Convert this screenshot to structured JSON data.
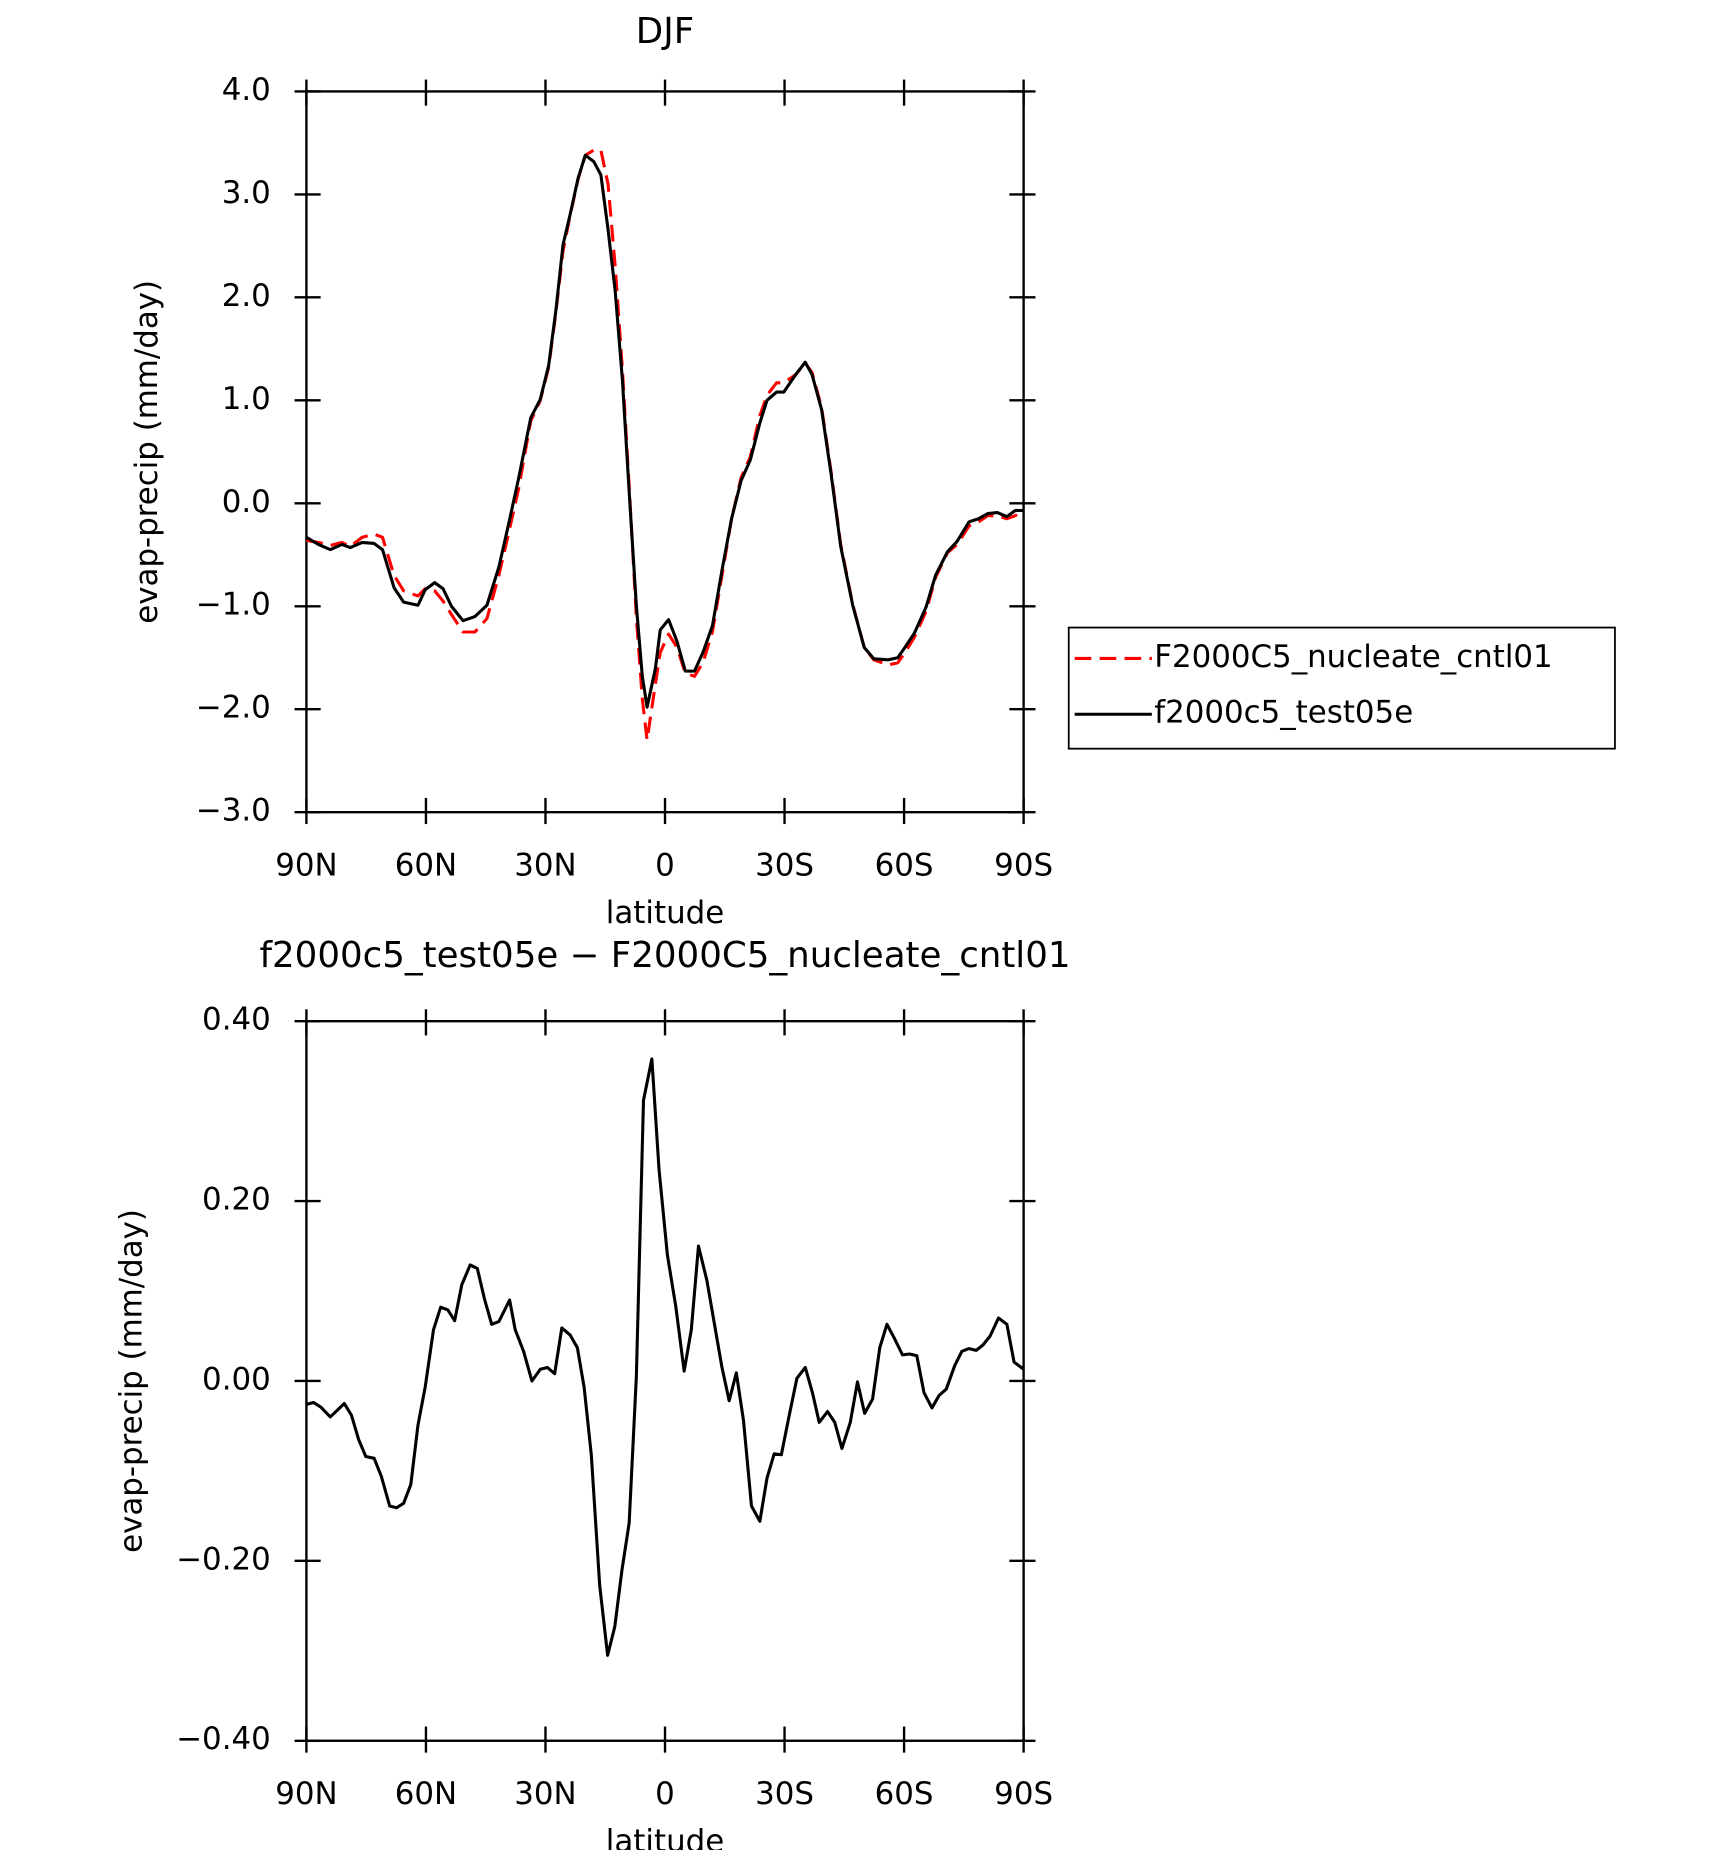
{
  "chart_data": [
    {
      "type": "line",
      "title": "DJF",
      "xlabel": "latitude",
      "ylabel": "evap-precip (mm/day)",
      "x": [
        90,
        87.0,
        84.0,
        81.1,
        79.0,
        76.0,
        73.0,
        70.9,
        68.0,
        65.6,
        62.0,
        60.2,
        57.8,
        55.7,
        53.6,
        50.7,
        47.7,
        44.7,
        41.7,
        39.3,
        36.7,
        33.7,
        31.3,
        29.2,
        27.4,
        25.6,
        23.9,
        21.8,
        20.0,
        17.9,
        16.1,
        14.3,
        12.5,
        10.7,
        8.9,
        7.2,
        5.7,
        4.5,
        2.4,
        1.2,
        -0.9,
        -3.0,
        -5.1,
        -7.4,
        -9.5,
        -11.9,
        -14.3,
        -16.7,
        -19.1,
        -21.4,
        -23.8,
        -25.6,
        -28.0,
        -29.8,
        -32.8,
        -35.2,
        -36.9,
        -39.3,
        -41.7,
        -44.1,
        -47.1,
        -50.0,
        -52.4,
        -56.0,
        -58.4,
        -60.2,
        -62.6,
        -65.5,
        -67.9,
        -70.9,
        -73.3,
        -76.3,
        -78.7,
        -81.0,
        -83.4,
        -85.8,
        -87.9,
        -90
      ],
      "series": [
        {
          "name": "F2000C5_nucleate_cntl01",
          "color": "#ff0000",
          "dash": "dashed",
          "values": [
            -0.36,
            -0.38,
            -0.41,
            -0.38,
            -0.42,
            -0.33,
            -0.3,
            -0.33,
            -0.7,
            -0.85,
            -0.9,
            -0.83,
            -0.85,
            -0.95,
            -1.08,
            -1.25,
            -1.25,
            -1.12,
            -0.7,
            -0.3,
            0.15,
            0.8,
            1.0,
            1.32,
            1.85,
            2.45,
            2.78,
            3.15,
            3.38,
            3.43,
            3.43,
            3.1,
            2.3,
            1.3,
            0.1,
            -1.1,
            -1.9,
            -2.3,
            -1.75,
            -1.45,
            -1.27,
            -1.4,
            -1.65,
            -1.68,
            -1.55,
            -1.25,
            -0.7,
            -0.15,
            0.25,
            0.45,
            0.85,
            1.05,
            1.17,
            1.17,
            1.25,
            1.36,
            1.27,
            0.93,
            0.3,
            -0.4,
            -0.98,
            -1.4,
            -1.52,
            -1.57,
            -1.55,
            -1.45,
            -1.3,
            -1.05,
            -0.72,
            -0.48,
            -0.4,
            -0.22,
            -0.18,
            -0.12,
            -0.12,
            -0.15,
            -0.12,
            -0.07
          ]
        },
        {
          "name": "f2000c5_test05e",
          "color": "#000000",
          "dash": "solid",
          "values": [
            -0.33,
            -0.4,
            -0.45,
            -0.4,
            -0.43,
            -0.38,
            -0.39,
            -0.45,
            -0.82,
            -0.96,
            -0.99,
            -0.84,
            -0.77,
            -0.83,
            -1.0,
            -1.14,
            -1.1,
            -0.99,
            -0.62,
            -0.21,
            0.25,
            0.83,
            1.01,
            1.34,
            1.87,
            2.51,
            2.79,
            3.16,
            3.38,
            3.32,
            3.19,
            2.66,
            2.06,
            1.2,
            0.05,
            -0.99,
            -1.68,
            -1.98,
            -1.6,
            -1.23,
            -1.13,
            -1.34,
            -1.63,
            -1.63,
            -1.45,
            -1.19,
            -0.65,
            -0.15,
            0.22,
            0.42,
            0.78,
            1.0,
            1.08,
            1.08,
            1.25,
            1.37,
            1.25,
            0.91,
            0.28,
            -0.42,
            -0.99,
            -1.4,
            -1.51,
            -1.52,
            -1.5,
            -1.4,
            -1.26,
            -1.01,
            -0.7,
            -0.47,
            -0.37,
            -0.18,
            -0.15,
            -0.1,
            -0.09,
            -0.13,
            -0.07,
            -0.07
          ]
        }
      ],
      "xlim": [
        90,
        -90
      ],
      "xticks": [
        {
          "value": 90,
          "label": "90N"
        },
        {
          "value": 60,
          "label": "60N"
        },
        {
          "value": 30,
          "label": "30N"
        },
        0,
        {
          "value": -30,
          "label": "30S"
        },
        {
          "value": -60,
          "label": "60S"
        },
        {
          "value": -90,
          "label": "90S"
        }
      ],
      "ylim": [
        -3,
        4
      ],
      "yticks": [
        {
          "value": 4,
          "label": "4.0"
        },
        {
          "value": 3,
          "label": "3.0"
        },
        {
          "value": 2,
          "label": "2.0"
        },
        {
          "value": 1,
          "label": "1.0"
        },
        {
          "value": 0,
          "label": "0.0"
        },
        {
          "value": -1,
          "label": "−1.0"
        },
        {
          "value": -2,
          "label": "−2.0"
        },
        {
          "value": -3,
          "label": "−3.0"
        }
      ],
      "legend": "right"
    },
    {
      "type": "line",
      "title": "f2000c5_test05e − F2000C5_nucleate_cntl01",
      "xlabel": "latitude",
      "ylabel": "evap-precip (mm/day)",
      "x": [
        90,
        88.2,
        86.4,
        84.0,
        80.5,
        78.7,
        76.9,
        75.1,
        73.0,
        71.2,
        69.1,
        67.4,
        65.6,
        63.8,
        62.0,
        60.2,
        58.1,
        56.3,
        54.5,
        52.8,
        51.0,
        48.9,
        47.1,
        45.3,
        43.5,
        41.7,
        39.0,
        37.6,
        35.5,
        33.4,
        31.3,
        29.5,
        27.7,
        25.9,
        23.8,
        22.0,
        20.3,
        18.5,
        16.4,
        14.4,
        12.6,
        10.8,
        9.0,
        7.2,
        5.4,
        3.3,
        1.5,
        -0.6,
        -2.7,
        -4.8,
        -6.6,
        -8.4,
        -10.5,
        -12.3,
        -14.3,
        -16.1,
        -17.9,
        -19.7,
        -21.7,
        -23.8,
        -25.6,
        -27.4,
        -29.2,
        -31.0,
        -33.1,
        -35.2,
        -37.0,
        -38.7,
        -40.8,
        -42.6,
        -44.4,
        -46.5,
        -48.3,
        -50.1,
        -52.1,
        -53.9,
        -55.7,
        -57.5,
        -59.6,
        -61.4,
        -63.2,
        -65.0,
        -67.0,
        -68.8,
        -70.6,
        -72.7,
        -74.5,
        -76.3,
        -78.1,
        -79.8,
        -81.6,
        -83.7,
        -85.8,
        -87.6,
        -90
      ],
      "values": [
        -0.026,
        -0.024,
        -0.029,
        -0.04,
        -0.025,
        -0.038,
        -0.065,
        -0.084,
        -0.086,
        -0.106,
        -0.139,
        -0.141,
        -0.136,
        -0.115,
        -0.049,
        -0.007,
        0.057,
        0.082,
        0.079,
        0.067,
        0.107,
        0.129,
        0.125,
        0.091,
        0.063,
        0.066,
        0.09,
        0.057,
        0.033,
        0.0,
        0.013,
        0.015,
        0.008,
        0.059,
        0.051,
        0.037,
        -0.007,
        -0.082,
        -0.227,
        -0.305,
        -0.273,
        -0.21,
        -0.158,
        0.004,
        0.312,
        0.358,
        0.235,
        0.14,
        0.083,
        0.011,
        0.057,
        0.15,
        0.112,
        0.066,
        0.015,
        -0.022,
        0.009,
        -0.044,
        -0.139,
        -0.156,
        -0.108,
        -0.081,
        -0.082,
        -0.042,
        0.003,
        0.015,
        -0.013,
        -0.046,
        -0.034,
        -0.046,
        -0.075,
        -0.046,
        -0.001,
        -0.036,
        -0.02,
        0.037,
        0.063,
        0.048,
        0.029,
        0.03,
        0.028,
        -0.013,
        -0.03,
        -0.016,
        -0.009,
        0.017,
        0.033,
        0.036,
        0.034,
        0.04,
        0.05,
        0.07,
        0.063,
        0.021,
        0.013
      ],
      "color": "#000000",
      "xlim": [
        90,
        -90
      ],
      "xticks": [
        {
          "value": 90,
          "label": "90N"
        },
        {
          "value": 60,
          "label": "60N"
        },
        {
          "value": 30,
          "label": "30N"
        },
        0,
        {
          "value": -30,
          "label": "30S"
        },
        {
          "value": -60,
          "label": "60S"
        },
        {
          "value": -90,
          "label": "90S"
        }
      ],
      "ylim": [
        -0.4,
        0.4
      ],
      "yticks": [
        {
          "value": 0.4,
          "label": "0.40"
        },
        {
          "value": 0.2,
          "label": "0.20"
        },
        {
          "value": 0,
          "label": "0.00"
        },
        {
          "value": -0.2,
          "label": "−0.20"
        },
        {
          "value": -0.4,
          "label": "−0.40"
        }
      ]
    }
  ]
}
